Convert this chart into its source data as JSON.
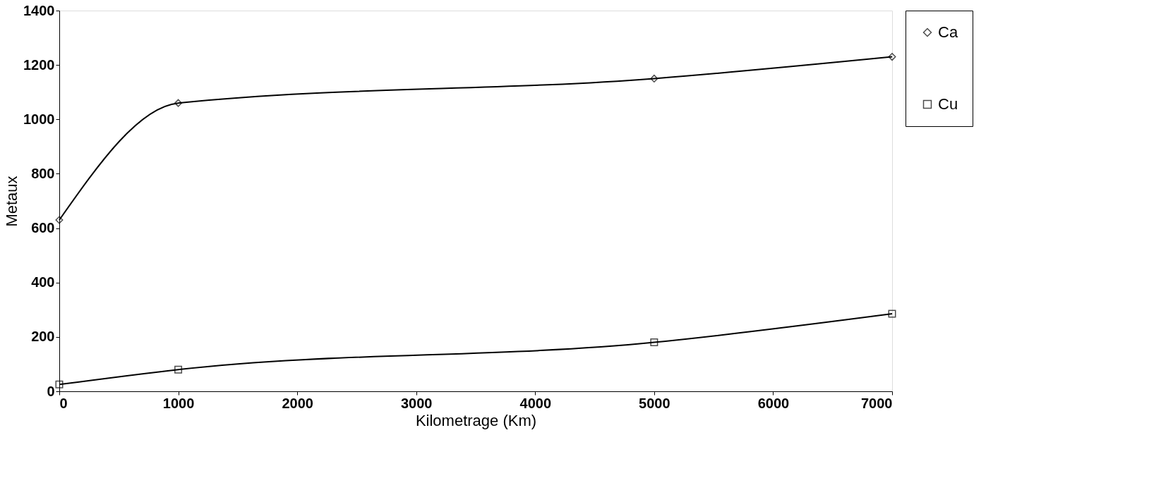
{
  "chart_data": {
    "type": "line",
    "xlabel": "Kilometrage (Km)",
    "ylabel": "Metaux",
    "x": [
      0,
      1000,
      5000,
      7000
    ],
    "series": [
      {
        "name": "Ca",
        "color": "#000000",
        "marker": "diamond",
        "values": [
          630,
          1060,
          1150,
          1230
        ]
      },
      {
        "name": "Cu",
        "color": "#000000",
        "marker": "square",
        "values": [
          25,
          80,
          180,
          285
        ]
      }
    ],
    "xlim": [
      0,
      7000
    ],
    "xticks": [
      0,
      1000,
      2000,
      3000,
      4000,
      5000,
      6000,
      7000
    ],
    "ylim": [
      0,
      1400
    ],
    "yticks": [
      0,
      200,
      400,
      600,
      800,
      1000,
      1200,
      1400
    ],
    "grid": false,
    "legend": "right",
    "line_style": "solid"
  }
}
